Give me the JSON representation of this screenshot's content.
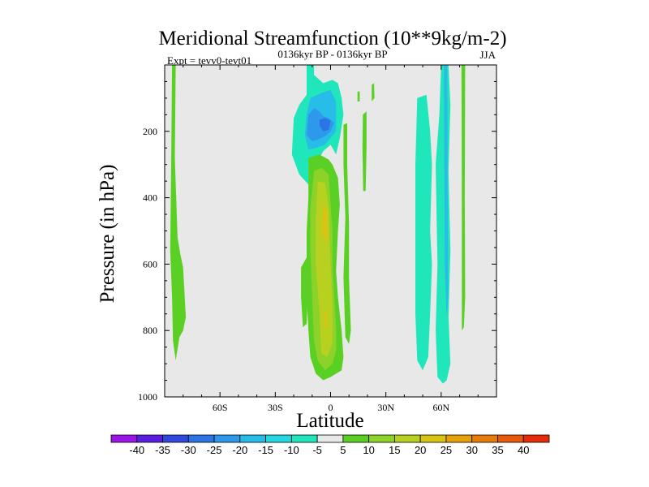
{
  "chart_data": {
    "type": "contour",
    "title": "Meridional Streamfunction (10**9kg/m-2)",
    "subtitle": "0136kyr BP - 0136kyr BP",
    "left_label": "Expt = tevv0-tevt01",
    "right_label": "JJA",
    "xlabel": "Latitude",
    "ylabel": "Pressure (in hPa)",
    "xlim": [
      -90,
      90
    ],
    "ylim": [
      1000,
      0
    ],
    "x_scale": "linear",
    "y_scale": "linear",
    "y_inverted": true,
    "grid": false,
    "x_ticks": [
      {
        "value": -60,
        "label": "60S"
      },
      {
        "value": -30,
        "label": "30S"
      },
      {
        "value": 0,
        "label": "0"
      },
      {
        "value": 30,
        "label": "30N"
      },
      {
        "value": 60,
        "label": "60N"
      }
    ],
    "y_ticks": [
      {
        "value": 200,
        "label": "200"
      },
      {
        "value": 400,
        "label": "400"
      },
      {
        "value": 600,
        "label": "600"
      },
      {
        "value": 800,
        "label": "800"
      },
      {
        "value": 1000,
        "label": "1000"
      }
    ],
    "background_color": "#e8e8e8",
    "colorbar": {
      "placement": "bottom",
      "levels": [
        "-40",
        "-35",
        "-30",
        "-25",
        "-20",
        "-15",
        "-10",
        "-5",
        "5",
        "10",
        "15",
        "20",
        "25",
        "30",
        "35",
        "40"
      ],
      "colors": [
        "#9a14e6",
        "#5a1ee0",
        "#3048dc",
        "#2a74e6",
        "#2e98ea",
        "#28bce8",
        "#24d8e2",
        "#20e6bc",
        "#e8e8e8",
        "#5ad024",
        "#8cd228",
        "#b8d020",
        "#d8c412",
        "#e6a00a",
        "#e67c0a",
        "#e6580a",
        "#e62a0a"
      ]
    },
    "regions": [
      {
        "name": "band-85S",
        "level": "5 to 10",
        "color": "#5ad024",
        "points": [
          [
            -86,
            0
          ],
          [
            -84,
            0
          ],
          [
            -84.5,
            280
          ],
          [
            -83,
            520
          ],
          [
            -81.5,
            570
          ],
          [
            -80,
            610
          ],
          [
            -78.5,
            760
          ],
          [
            -80,
            800
          ],
          [
            -82,
            820
          ],
          [
            -84,
            890
          ],
          [
            -85.5,
            830
          ],
          [
            -86,
            700
          ],
          [
            -87,
            560
          ],
          [
            -86.5,
            300
          ]
        ]
      },
      {
        "name": "band-50N-55N",
        "level": "-10 to -5",
        "color": "#20e6bc",
        "points": [
          [
            47,
            100
          ],
          [
            52,
            90
          ],
          [
            54,
            200
          ],
          [
            55,
            300
          ],
          [
            54,
            500
          ],
          [
            55,
            600
          ],
          [
            54,
            750
          ],
          [
            53,
            880
          ],
          [
            50,
            920
          ],
          [
            47,
            890
          ],
          [
            46,
            750
          ],
          [
            46,
            300
          ]
        ]
      },
      {
        "name": "band-65N",
        "level": "-10 to -5",
        "color": "#20e6bc",
        "points": [
          [
            60,
            0
          ],
          [
            64,
            0
          ],
          [
            65,
            120
          ],
          [
            64,
            320
          ],
          [
            65,
            560
          ],
          [
            64,
            760
          ],
          [
            65,
            900
          ],
          [
            63,
            950
          ],
          [
            61,
            960
          ],
          [
            58,
            940
          ],
          [
            57,
            800
          ],
          [
            58,
            600
          ],
          [
            57,
            300
          ],
          [
            59,
            150
          ]
        ]
      },
      {
        "name": "core-63N",
        "level": "-15 to -10",
        "color": "#28bce8",
        "points": [
          [
            61.5,
            0
          ],
          [
            63.3,
            0
          ],
          [
            63.5,
            400
          ],
          [
            63.8,
            700
          ],
          [
            63,
            760
          ],
          [
            62,
            620
          ],
          [
            61.7,
            300
          ]
        ]
      },
      {
        "name": "band-73N",
        "level": "5 to 10",
        "color": "#5ad024",
        "points": [
          [
            71,
            0
          ],
          [
            73,
            0
          ],
          [
            72.8,
            400
          ],
          [
            73,
            700
          ],
          [
            72.3,
            790
          ],
          [
            71.2,
            800
          ],
          [
            71.2,
            500
          ],
          [
            71.1,
            200
          ]
        ]
      },
      {
        "name": "upper-ascent",
        "level": "-10 to -5",
        "color": "#20e6bc",
        "points": [
          [
            -13,
            0
          ],
          [
            -9,
            0
          ],
          [
            -9,
            30
          ],
          [
            -7,
            40
          ],
          [
            -4,
            55
          ],
          [
            1,
            45
          ],
          [
            4,
            55
          ],
          [
            6,
            100
          ],
          [
            7,
            150
          ],
          [
            5,
            220
          ],
          [
            3,
            270
          ],
          [
            0,
            240
          ],
          [
            -4,
            260
          ],
          [
            -7,
            290
          ],
          [
            -9,
            340
          ],
          [
            -12,
            360
          ],
          [
            -17,
            330
          ],
          [
            -21,
            270
          ],
          [
            -20,
            160
          ],
          [
            -17,
            120
          ],
          [
            -13,
            90
          ]
        ]
      },
      {
        "name": "upper-core",
        "level": "-15 to -10",
        "color": "#28bce8",
        "points": [
          [
            -11,
            100
          ],
          [
            -5,
            85
          ],
          [
            0,
            75
          ],
          [
            3,
            110
          ],
          [
            3,
            200
          ],
          [
            0,
            220
          ],
          [
            -3,
            240
          ],
          [
            -8,
            250
          ],
          [
            -12,
            255
          ],
          [
            -14,
            210
          ],
          [
            -13,
            150
          ]
        ]
      },
      {
        "name": "upper-core-inner",
        "level": "-20 to -15",
        "color": "#2e98ea",
        "points": [
          [
            -12,
            150
          ],
          [
            -9,
            130
          ],
          [
            -6,
            140
          ],
          [
            -4,
            155
          ],
          [
            -1,
            160
          ],
          [
            2,
            175
          ],
          [
            0,
            200
          ],
          [
            -3,
            215
          ],
          [
            -7,
            225
          ],
          [
            -10,
            230
          ],
          [
            -13,
            210
          ]
        ]
      },
      {
        "name": "upper-core-peak",
        "level": "-25 to -20",
        "color": "#2a74e6",
        "points": [
          [
            -6,
            165
          ],
          [
            -3,
            160
          ],
          [
            0,
            168
          ],
          [
            -1,
            195
          ],
          [
            -4,
            200
          ],
          [
            -6,
            182
          ]
        ]
      },
      {
        "name": "column-outer",
        "level": "5 to 10",
        "color": "#5ad024",
        "points": [
          [
            -12,
            280
          ],
          [
            -6,
            270
          ],
          [
            -1,
            285
          ],
          [
            1,
            300
          ],
          [
            4,
            340
          ],
          [
            5,
            420
          ],
          [
            4,
            500
          ],
          [
            3,
            620
          ],
          [
            4,
            700
          ],
          [
            6,
            800
          ],
          [
            7,
            880
          ],
          [
            6,
            920
          ],
          [
            3,
            930
          ],
          [
            0,
            940
          ],
          [
            -4,
            950
          ],
          [
            -8,
            930
          ],
          [
            -11,
            880
          ],
          [
            -12,
            800
          ],
          [
            -13,
            700
          ],
          [
            -13,
            500
          ],
          [
            -12,
            400
          ]
        ]
      },
      {
        "name": "column-inner",
        "level": "10 to 15",
        "color": "#8cd228",
        "points": [
          [
            -9,
            320
          ],
          [
            -5,
            310
          ],
          [
            -1,
            330
          ],
          [
            0,
            420
          ],
          [
            1,
            500
          ],
          [
            1,
            600
          ],
          [
            2,
            700
          ],
          [
            3,
            790
          ],
          [
            3,
            860
          ],
          [
            1,
            900
          ],
          [
            -3,
            920
          ],
          [
            -7,
            890
          ],
          [
            -9,
            830
          ],
          [
            -10,
            700
          ],
          [
            -11,
            560
          ],
          [
            -11,
            430
          ]
        ]
      },
      {
        "name": "column-core",
        "level": "15 to 20",
        "color": "#b8d020",
        "points": [
          [
            -7,
            350
          ],
          [
            -3,
            355
          ],
          [
            -1,
            430
          ],
          [
            0,
            600
          ],
          [
            1,
            720
          ],
          [
            1,
            840
          ],
          [
            -2,
            880
          ],
          [
            -5,
            870
          ],
          [
            -6,
            750
          ],
          [
            -8,
            600
          ],
          [
            -8,
            460
          ]
        ]
      },
      {
        "name": "column-peak",
        "level": "20 to 25",
        "color": "#d8c412",
        "points": [
          [
            -4,
            420
          ],
          [
            -1.5,
            440
          ],
          [
            -1.5,
            520
          ],
          [
            -3,
            535
          ],
          [
            -5,
            500
          ]
        ]
      },
      {
        "name": "column-peak-lower",
        "level": "20 to 25",
        "color": "#d8c412",
        "points": [
          [
            -3.5,
            740
          ],
          [
            -2,
            745
          ],
          [
            -2,
            790
          ],
          [
            -3.5,
            795
          ]
        ]
      },
      {
        "name": "band-15S",
        "level": "5 to 10",
        "color": "#5ad024",
        "points": [
          [
            -16,
            610
          ],
          [
            -13,
            580
          ],
          [
            -12,
            650
          ],
          [
            -13,
            780
          ],
          [
            -15,
            790
          ],
          [
            -16,
            700
          ]
        ]
      },
      {
        "name": "band-8N",
        "level": "5 to 10",
        "color": "#5ad024",
        "points": [
          [
            7,
            180
          ],
          [
            9,
            175
          ],
          [
            9,
            300
          ],
          [
            10,
            480
          ],
          [
            10,
            640
          ],
          [
            11,
            800
          ],
          [
            10,
            840
          ],
          [
            8,
            820
          ],
          [
            7,
            640
          ],
          [
            8,
            460
          ],
          [
            7,
            300
          ]
        ]
      },
      {
        "name": "band-15N-upper",
        "level": "5 to 10",
        "color": "#5ad024",
        "points": [
          [
            14.6,
            80
          ],
          [
            15.8,
            80
          ],
          [
            15.8,
            110
          ],
          [
            14.6,
            110
          ]
        ]
      },
      {
        "name": "band-18N",
        "level": "5 to 10",
        "color": "#5ad024",
        "points": [
          [
            17.5,
            150
          ],
          [
            19.5,
            140
          ],
          [
            19.5,
            250
          ],
          [
            19,
            380
          ],
          [
            17.7,
            380
          ],
          [
            17.3,
            250
          ]
        ]
      },
      {
        "name": "band-23N",
        "level": "5 to 10",
        "color": "#5ad024",
        "points": [
          [
            22.3,
            60
          ],
          [
            23.6,
            55
          ],
          [
            23.8,
            100
          ],
          [
            22.3,
            110
          ]
        ]
      }
    ]
  }
}
